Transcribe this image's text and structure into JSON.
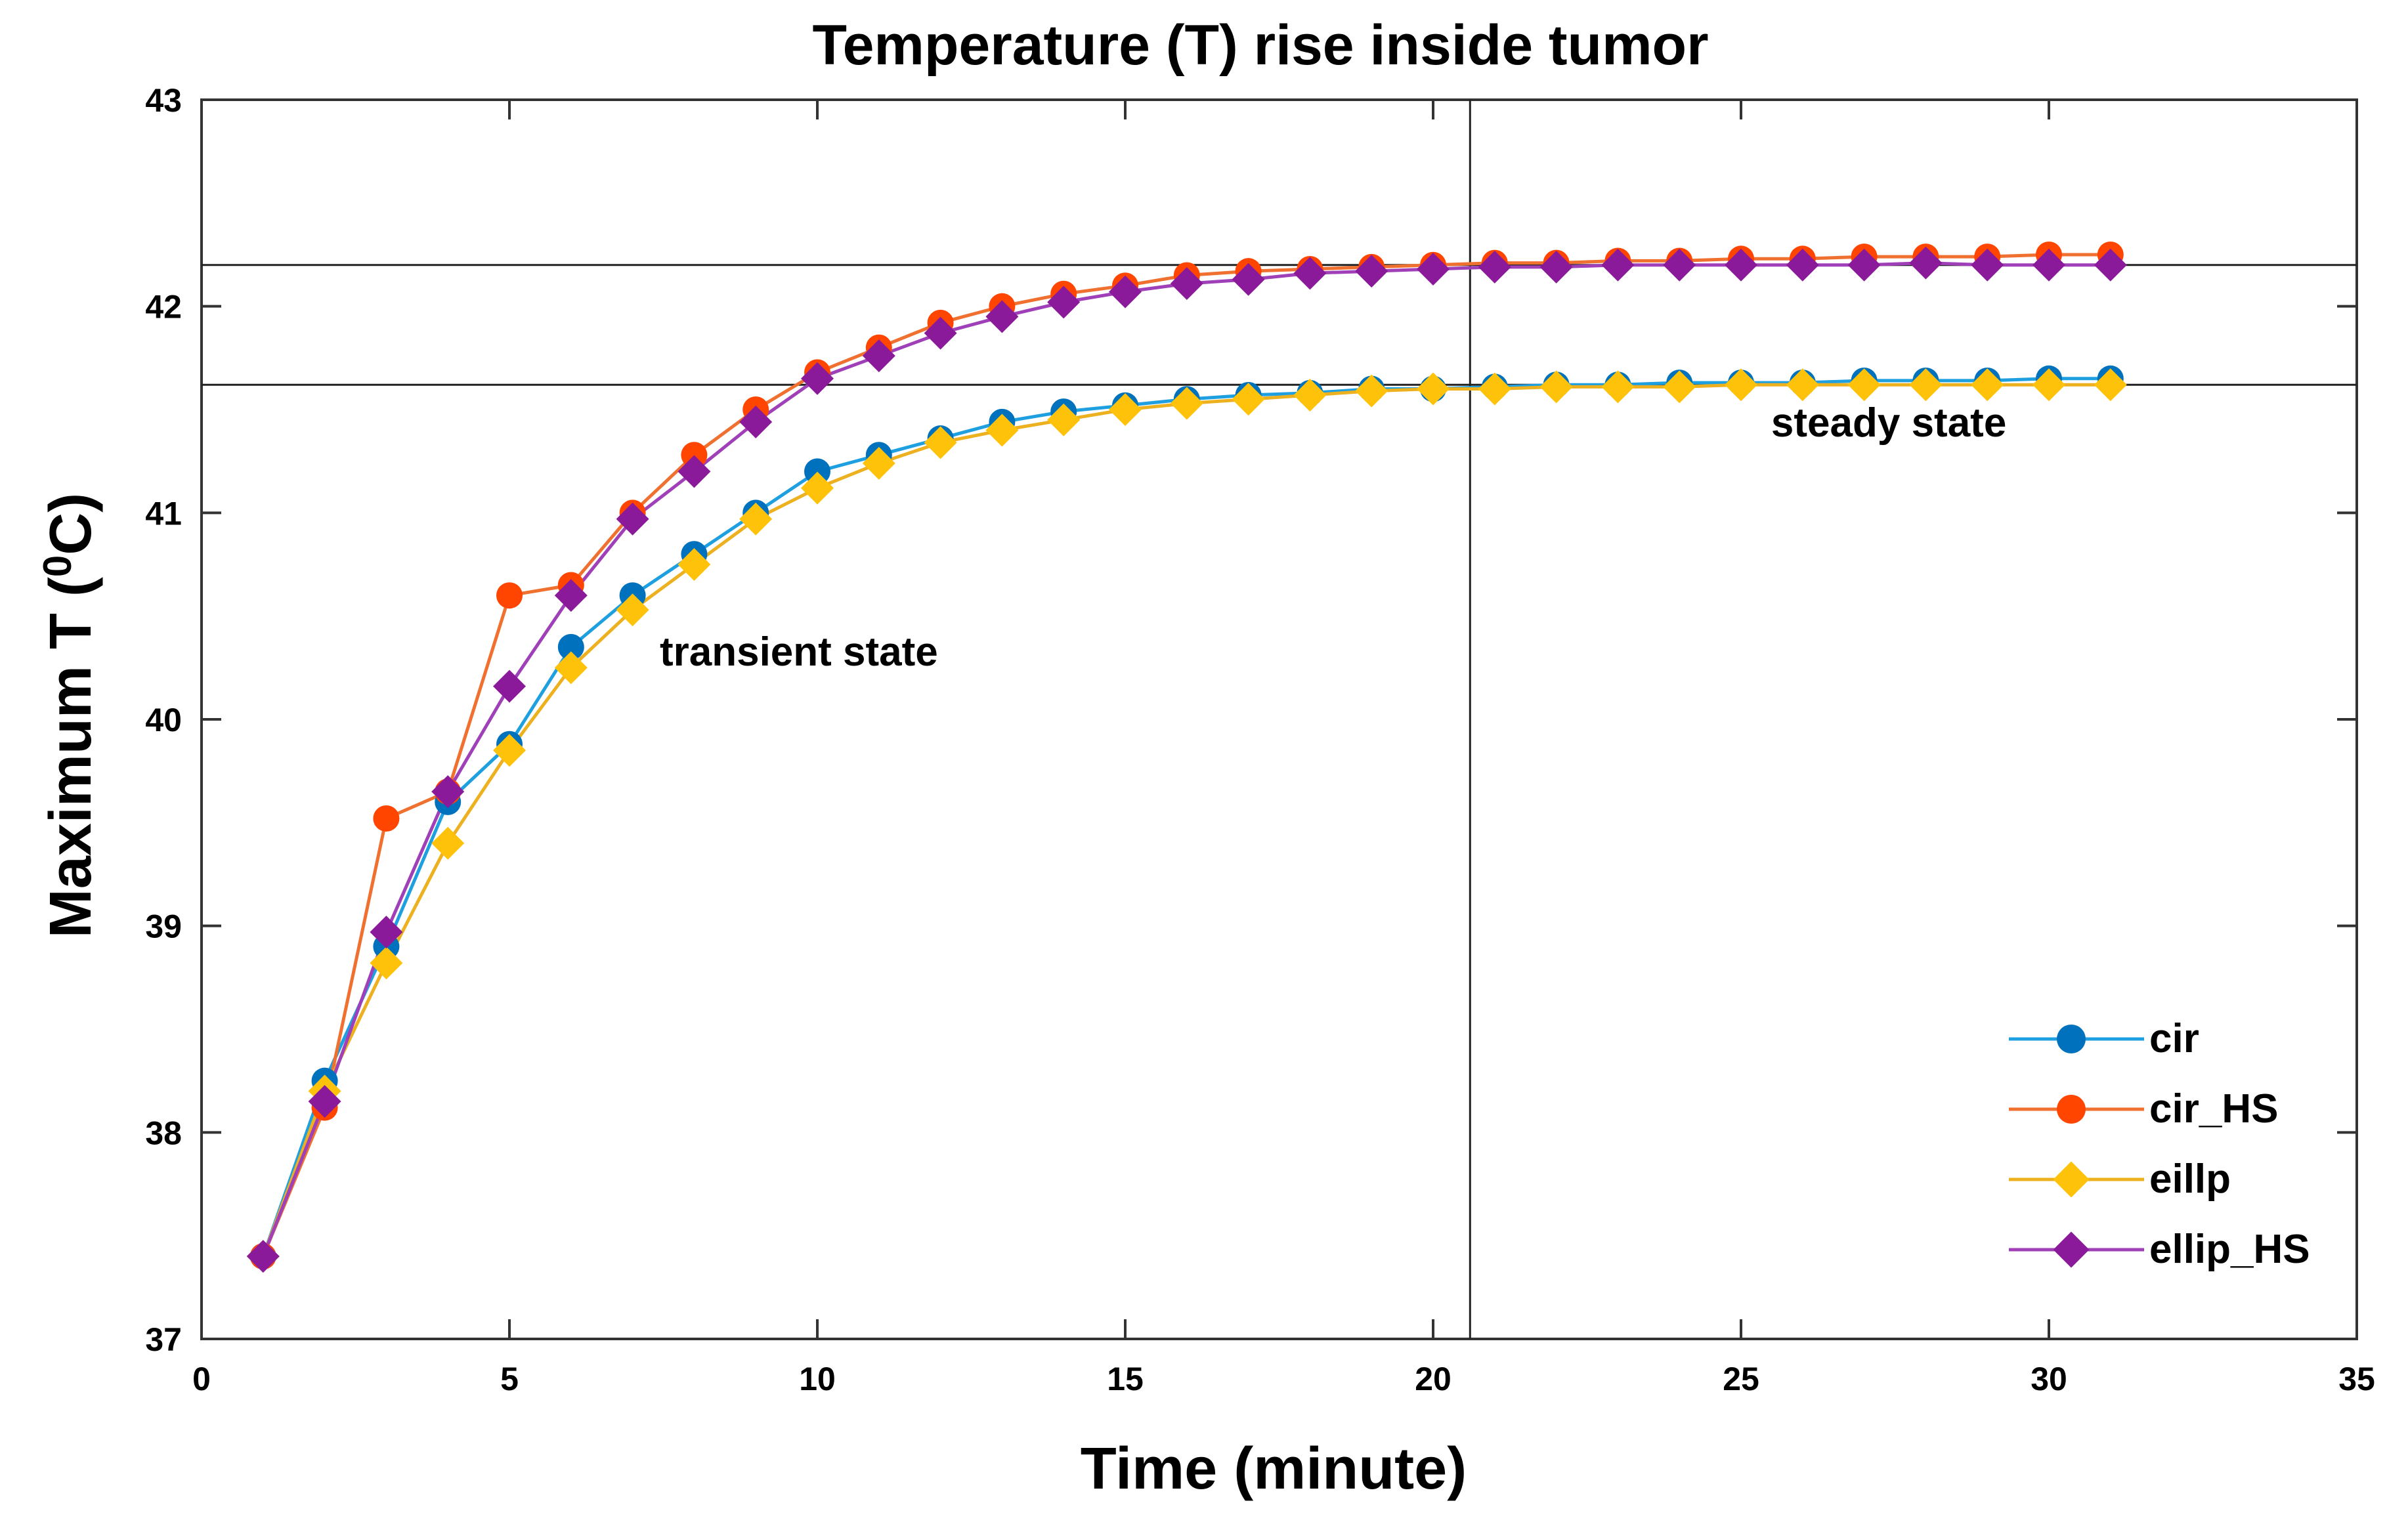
{
  "chart_data": {
    "type": "line",
    "title": "Temperature (T) rise inside tumor",
    "xlabel": "Time (minute)",
    "ylabel_main": "Maximum T (",
    "ylabel_sup": "0",
    "ylabel_end": "C)",
    "xlim": [
      0,
      35
    ],
    "ylim": [
      37,
      43
    ],
    "xticks": [
      "0",
      "5",
      "10",
      "15",
      "20",
      "25",
      "30",
      "35"
    ],
    "yticks": [
      "37",
      "38",
      "39",
      "40",
      "41",
      "42",
      "43"
    ],
    "grid": false,
    "legend_position": "bottom-right",
    "x": [
      1,
      2,
      3,
      4,
      5,
      6,
      7,
      8,
      9,
      10,
      11,
      12,
      13,
      14,
      15,
      16,
      17,
      18,
      19,
      20,
      21,
      22,
      23,
      24,
      25,
      26,
      27,
      28,
      29,
      30,
      31
    ],
    "series": [
      {
        "name": "cir",
        "color": "#0072BD",
        "line_color": "#1E9FE0",
        "marker": "circle",
        "values": [
          37.4,
          38.25,
          38.9,
          39.6,
          39.88,
          40.35,
          40.6,
          40.8,
          41.0,
          41.2,
          41.28,
          41.36,
          41.44,
          41.49,
          41.52,
          41.55,
          41.57,
          41.58,
          41.6,
          41.6,
          41.61,
          41.62,
          41.62,
          41.63,
          41.63,
          41.63,
          41.64,
          41.64,
          41.64,
          41.65,
          41.65
        ]
      },
      {
        "name": "cir_HS",
        "color": "#FF4500",
        "line_color": "#F07030",
        "marker": "circle",
        "values": [
          37.4,
          38.12,
          39.52,
          39.65,
          40.6,
          40.65,
          41.0,
          41.28,
          41.5,
          41.68,
          41.8,
          41.92,
          42.0,
          42.06,
          42.1,
          42.15,
          42.17,
          42.18,
          42.19,
          42.2,
          42.21,
          42.21,
          42.22,
          42.22,
          42.23,
          42.23,
          42.24,
          42.24,
          42.24,
          42.25,
          42.25
        ]
      },
      {
        "name": "eillp",
        "color": "#FFC20A",
        "line_color": "#EDB120",
        "marker": "diamond",
        "values": [
          37.4,
          38.2,
          38.82,
          39.4,
          39.85,
          40.25,
          40.53,
          40.75,
          40.97,
          41.12,
          41.24,
          41.34,
          41.4,
          41.45,
          41.5,
          41.53,
          41.55,
          41.57,
          41.59,
          41.6,
          41.6,
          41.61,
          41.61,
          41.61,
          41.62,
          41.62,
          41.62,
          41.62,
          41.62,
          41.62,
          41.62
        ]
      },
      {
        "name": "ellip_HS",
        "color": "#8B1A9A",
        "line_color": "#A040B8",
        "marker": "diamond",
        "values": [
          37.4,
          38.15,
          38.97,
          39.65,
          40.16,
          40.6,
          40.97,
          41.2,
          41.44,
          41.65,
          41.76,
          41.87,
          41.95,
          42.02,
          42.07,
          42.11,
          42.13,
          42.16,
          42.17,
          42.18,
          42.19,
          42.19,
          42.2,
          42.2,
          42.2,
          42.2,
          42.2,
          42.21,
          42.2,
          42.2,
          42.2
        ]
      }
    ],
    "reference_lines": {
      "horizontal": [
        42.2,
        41.62
      ],
      "vertical": [
        20.6
      ]
    },
    "annotations": [
      {
        "text": "transient state",
        "x": 9.7,
        "y": 40.26
      },
      {
        "text": "steady state",
        "x": 27.4,
        "y": 41.37
      }
    ]
  }
}
